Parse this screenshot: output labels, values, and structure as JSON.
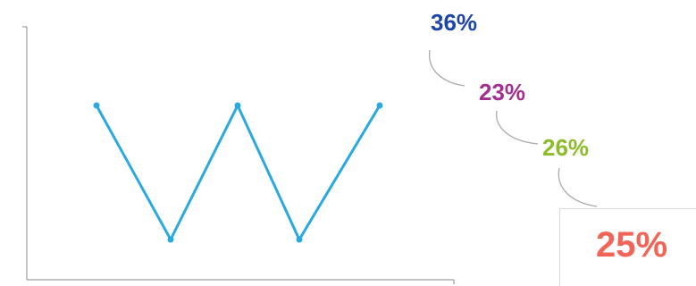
{
  "colors": {
    "line": "#29a9e0",
    "axis": "#888888",
    "connector": "#aaaaaa",
    "pct_1": "#1c46a8",
    "pct_2": "#a3308f",
    "pct_3": "#8cbc2a",
    "pct_4": "#f26457"
  },
  "chart_data": {
    "type": "line",
    "title": "",
    "xlabel": "",
    "ylabel": "",
    "x": [
      1,
      2,
      3,
      4,
      5
    ],
    "series": [
      {
        "values": [
          1,
          0,
          1,
          0,
          1
        ]
      }
    ],
    "ylim": [
      -0.1,
      1.3
    ],
    "grid": false,
    "annotations": [
      "36%",
      "23%",
      "26%",
      "25%"
    ]
  }
}
